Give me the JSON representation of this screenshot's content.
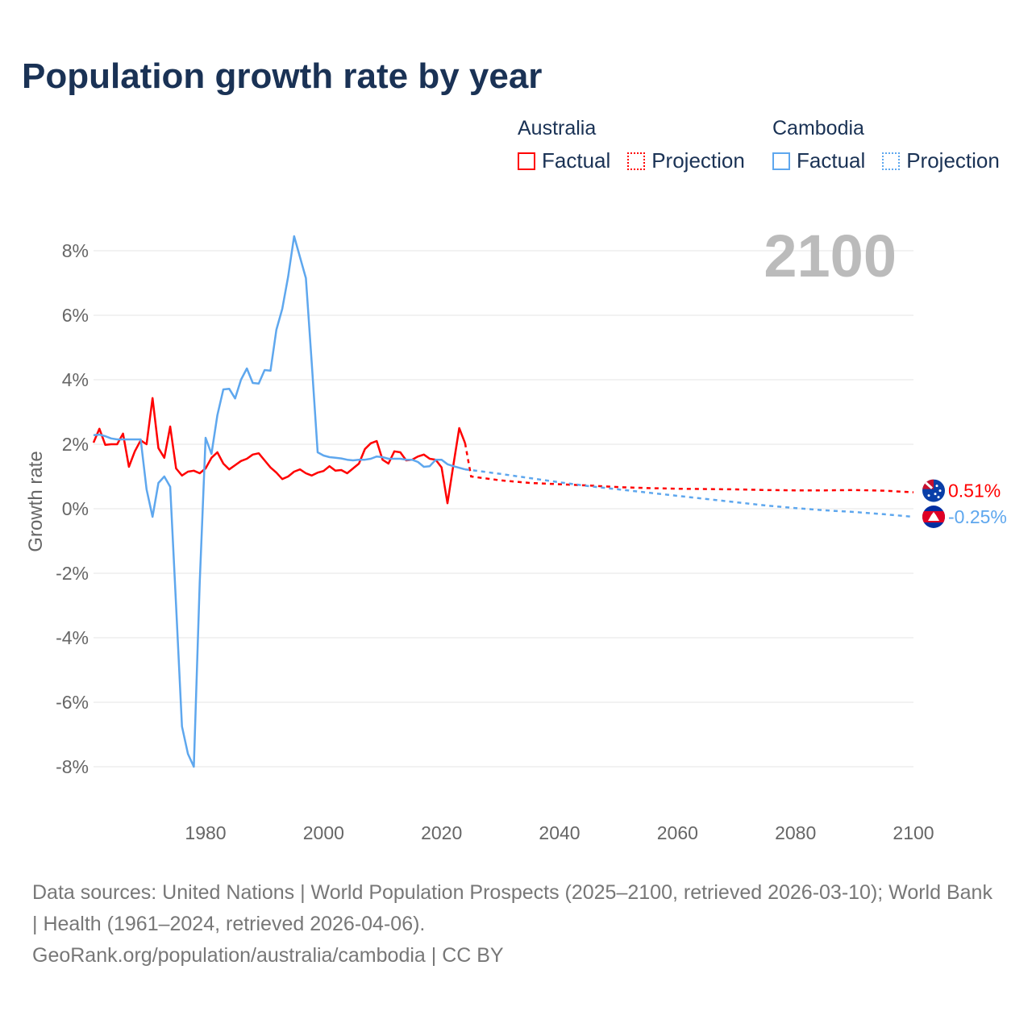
{
  "title": "Population growth rate by year",
  "legend": [
    {
      "country": "Australia",
      "factual": "Factual",
      "projection": "Projection",
      "color": "#ff0000"
    },
    {
      "country": "Cambodia",
      "factual": "Factual",
      "projection": "Projection",
      "color": "#5ea7ee"
    }
  ],
  "chart_data": {
    "type": "line",
    "title": "Population growth rate by year",
    "ylabel": "Growth rate",
    "xlabel": "",
    "xlim": [
      1961,
      2100
    ],
    "ylim": [
      -9,
      9
    ],
    "yticks": [
      8,
      6,
      4,
      2,
      0,
      -2,
      -4,
      -6,
      -8
    ],
    "ytick_labels": [
      "8%",
      "6%",
      "4%",
      "2%",
      "0%",
      "-2%",
      "-4%",
      "-6%",
      "-8%"
    ],
    "xticks": [
      1980,
      2000,
      2020,
      2040,
      2060,
      2080,
      2100
    ],
    "xtick_labels": [
      "1980",
      "2000",
      "2020",
      "2040",
      "2060",
      "2080",
      "2100"
    ],
    "grid": true,
    "year_label": "2100",
    "series": [
      {
        "name": "Australia",
        "color": "#ff0000",
        "end_label": "0.51%",
        "factual": {
          "x": [
            1961,
            1962,
            1963,
            1964,
            1965,
            1966,
            1967,
            1968,
            1969,
            1970,
            1971,
            1972,
            1973,
            1974,
            1975,
            1976,
            1977,
            1978,
            1979,
            1980,
            1981,
            1982,
            1983,
            1984,
            1985,
            1986,
            1987,
            1988,
            1989,
            1990,
            1991,
            1992,
            1993,
            1994,
            1995,
            1996,
            1997,
            1998,
            1999,
            2000,
            2001,
            2002,
            2003,
            2004,
            2005,
            2006,
            2007,
            2008,
            2009,
            2010,
            2011,
            2012,
            2013,
            2014,
            2015,
            2016,
            2017,
            2018,
            2019,
            2020,
            2021,
            2022,
            2023,
            2024
          ],
          "y": [
            2.05,
            2.48,
            1.98,
            2.0,
            2.0,
            2.33,
            1.3,
            1.78,
            2.12,
            2.0,
            3.43,
            1.88,
            1.58,
            2.55,
            1.25,
            1.03,
            1.15,
            1.18,
            1.1,
            1.25,
            1.58,
            1.75,
            1.4,
            1.22,
            1.35,
            1.48,
            1.55,
            1.68,
            1.72,
            1.5,
            1.28,
            1.12,
            0.92,
            1.0,
            1.15,
            1.22,
            1.1,
            1.03,
            1.12,
            1.17,
            1.32,
            1.18,
            1.2,
            1.1,
            1.25,
            1.4,
            1.85,
            2.03,
            2.1,
            1.52,
            1.4,
            1.78,
            1.75,
            1.5,
            1.52,
            1.62,
            1.68,
            1.55,
            1.52,
            1.28,
            0.17,
            1.35,
            2.5,
            2.03
          ]
        },
        "projection": {
          "x": [
            2024,
            2025,
            2030,
            2035,
            2040,
            2045,
            2050,
            2055,
            2060,
            2065,
            2070,
            2075,
            2080,
            2085,
            2090,
            2095,
            2100
          ],
          "y": [
            2.03,
            1.0,
            0.88,
            0.8,
            0.76,
            0.72,
            0.67,
            0.64,
            0.62,
            0.61,
            0.6,
            0.58,
            0.57,
            0.57,
            0.58,
            0.56,
            0.51
          ]
        }
      },
      {
        "name": "Cambodia",
        "color": "#5ea7ee",
        "end_label": "-0.25%",
        "factual": {
          "x": [
            1961,
            1962,
            1963,
            1964,
            1965,
            1966,
            1967,
            1968,
            1969,
            1970,
            1971,
            1972,
            1973,
            1974,
            1975,
            1976,
            1977,
            1978,
            1979,
            1980,
            1981,
            1982,
            1983,
            1984,
            1985,
            1986,
            1987,
            1988,
            1989,
            1990,
            1991,
            1992,
            1993,
            1994,
            1995,
            1996,
            1997,
            1998,
            1999,
            2000,
            2001,
            2002,
            2003,
            2004,
            2005,
            2006,
            2007,
            2008,
            2009,
            2010,
            2011,
            2012,
            2013,
            2014,
            2015,
            2016,
            2017,
            2018,
            2019,
            2020,
            2021,
            2022,
            2023,
            2024
          ],
          "y": [
            2.28,
            2.3,
            2.25,
            2.18,
            2.15,
            2.15,
            2.15,
            2.15,
            2.15,
            0.6,
            -0.25,
            0.8,
            1.0,
            0.68,
            -3.0,
            -6.75,
            -7.6,
            -8.0,
            -2.3,
            2.2,
            1.7,
            2.9,
            3.7,
            3.72,
            3.42,
            4.0,
            4.35,
            3.9,
            3.88,
            4.3,
            4.28,
            5.55,
            6.2,
            7.2,
            8.45,
            7.8,
            7.15,
            4.5,
            1.75,
            1.65,
            1.6,
            1.58,
            1.56,
            1.52,
            1.5,
            1.52,
            1.52,
            1.55,
            1.62,
            1.6,
            1.55,
            1.55,
            1.55,
            1.52,
            1.52,
            1.45,
            1.3,
            1.32,
            1.52,
            1.52,
            1.38,
            1.32,
            1.27,
            1.22
          ]
        },
        "projection": {
          "x": [
            2024,
            2025,
            2030,
            2035,
            2040,
            2045,
            2050,
            2055,
            2060,
            2065,
            2070,
            2075,
            2080,
            2085,
            2090,
            2095,
            2100
          ],
          "y": [
            1.22,
            1.2,
            1.08,
            0.95,
            0.82,
            0.7,
            0.6,
            0.5,
            0.4,
            0.3,
            0.2,
            0.1,
            0.02,
            -0.05,
            -0.1,
            -0.17,
            -0.25
          ]
        }
      }
    ]
  },
  "footer": {
    "sources": "Data sources: United Nations | World Population Prospects (2025–2100, retrieved 2026-03-10); World Bank | Health (1961–2024, retrieved 2026-04-06).",
    "credit": "GeoRank.org/population/australia/cambodia | CC BY"
  }
}
